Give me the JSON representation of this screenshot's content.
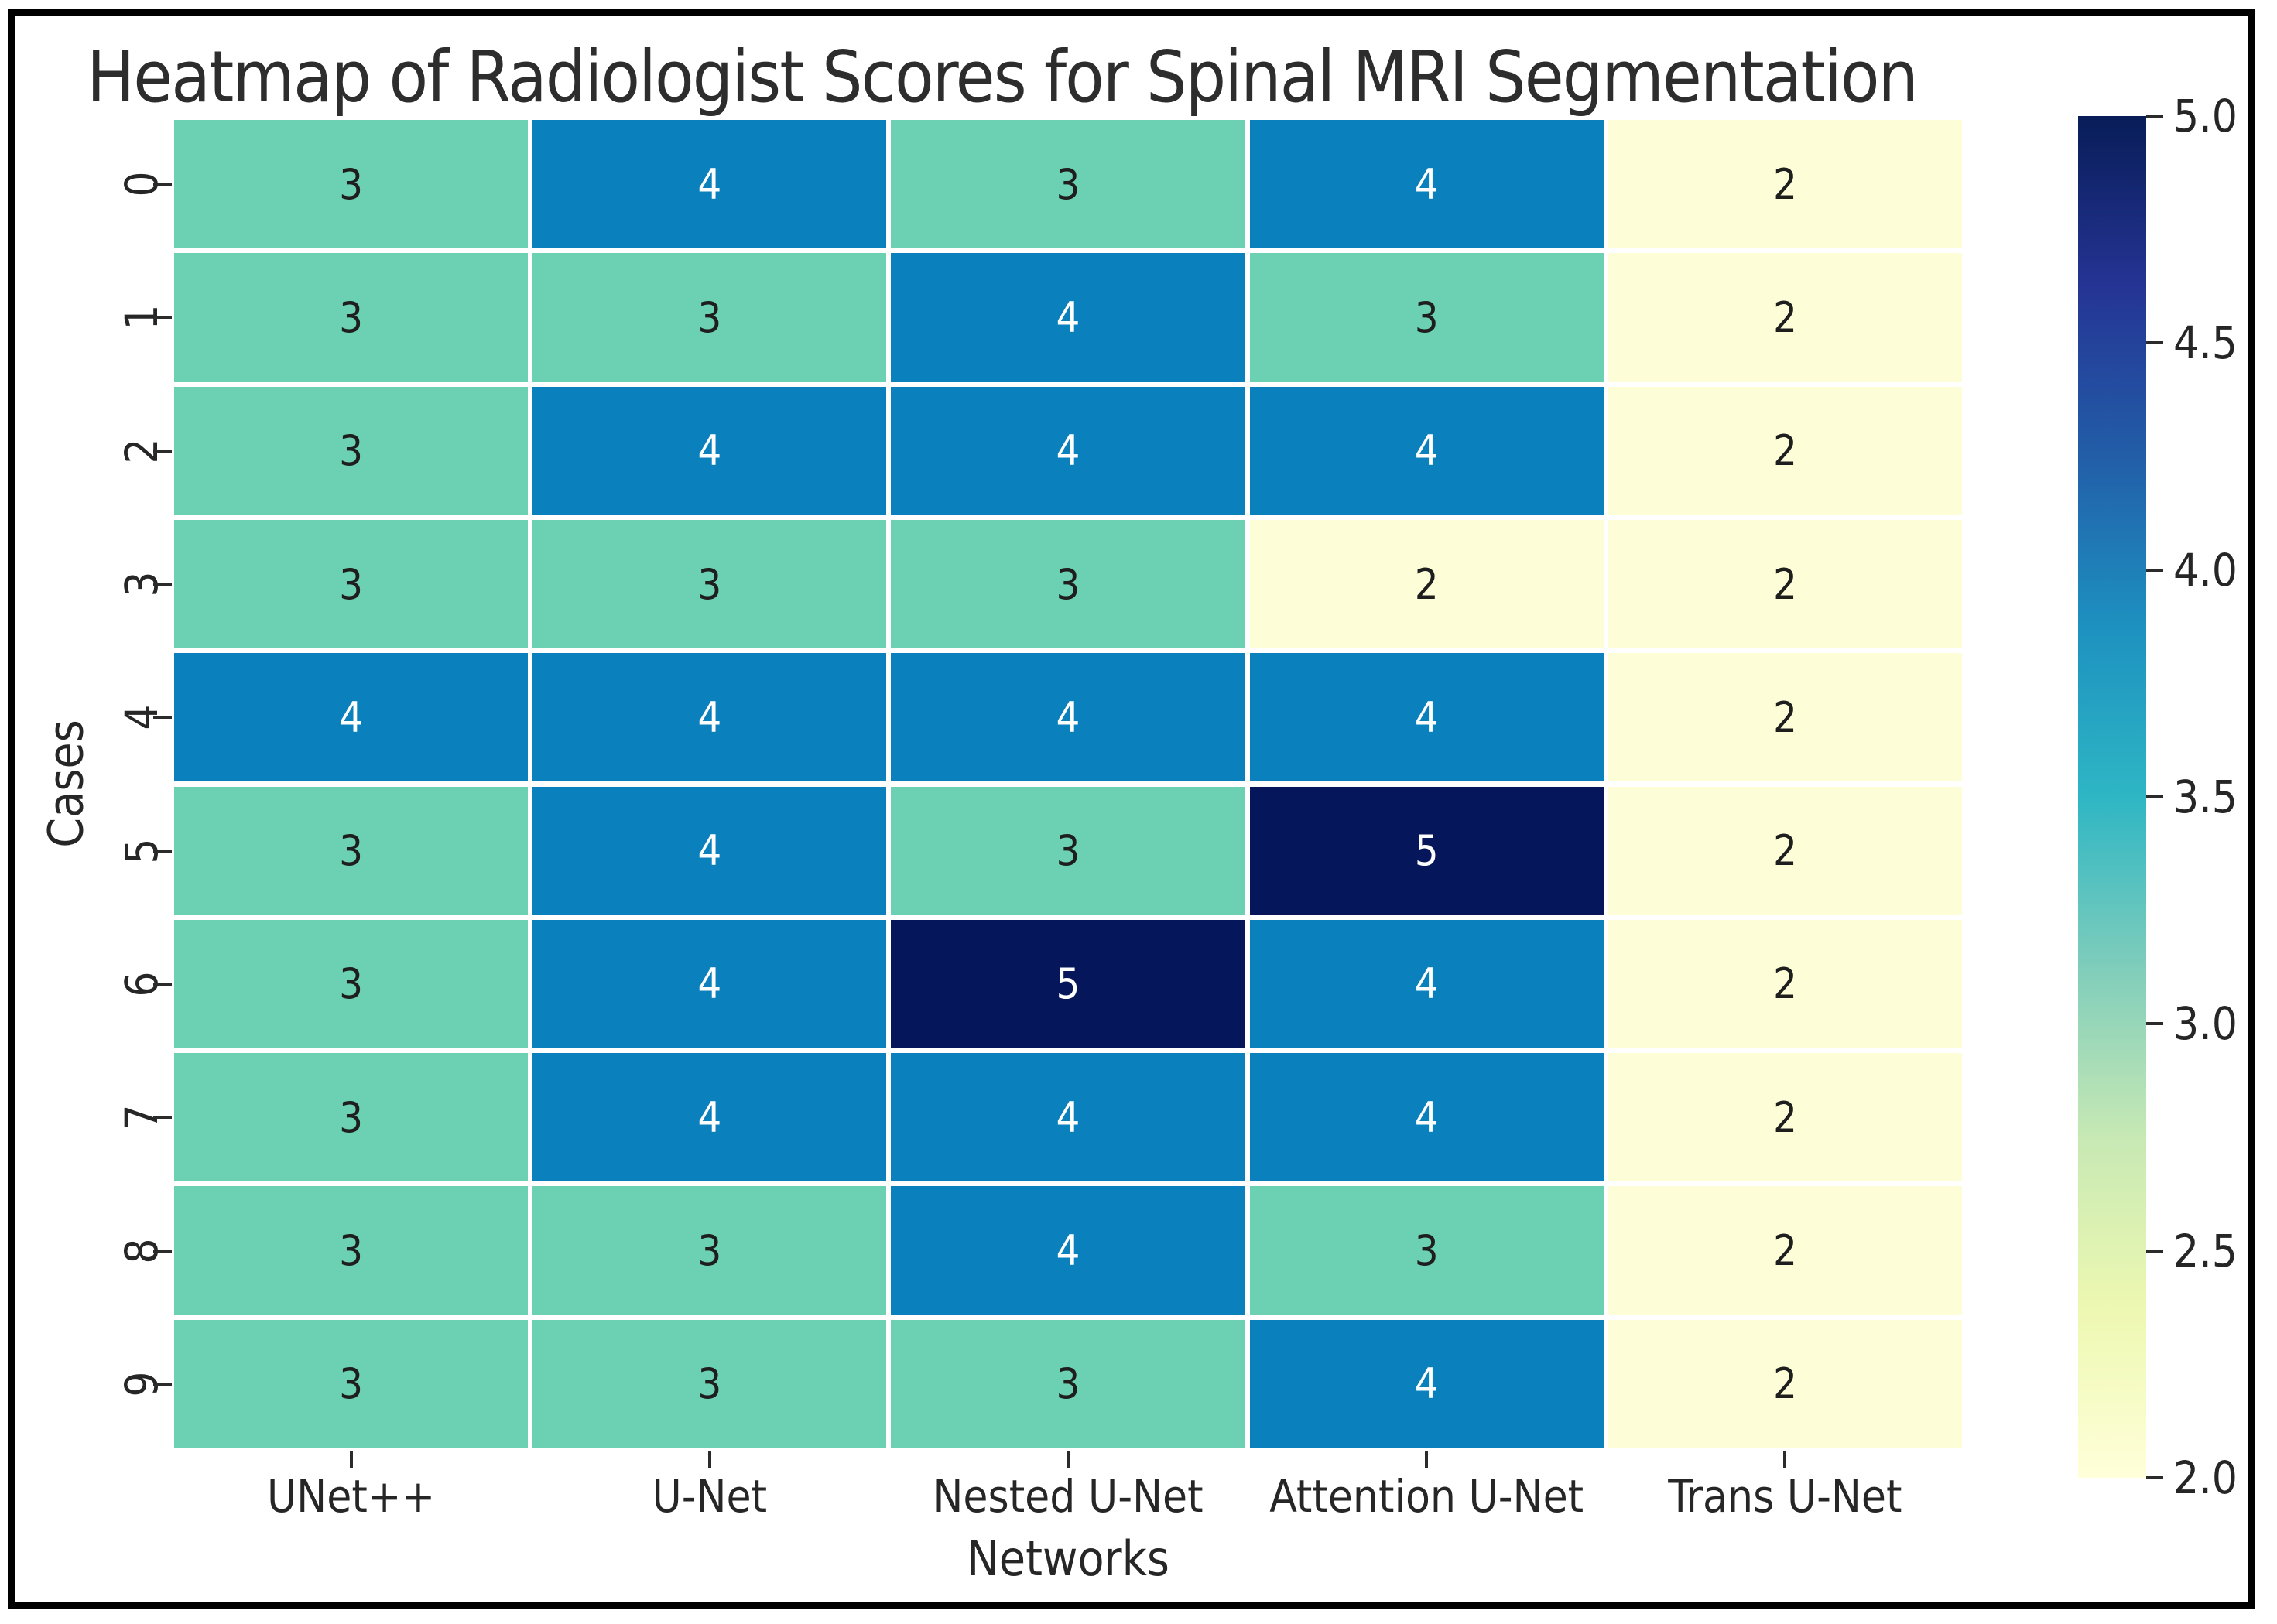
{
  "title": "Heatmap of Radiologist Scores for Spinal MRI Segmentation",
  "chart_data": {
    "type": "heatmap",
    "title": "Heatmap of Radiologist Scores for Spinal MRI Segmentation",
    "xlabel": "Networks",
    "ylabel": "Cases",
    "columns": [
      "UNet++",
      "U-Net",
      "Nested U-Net",
      "Attention U-Net",
      "Trans U-Net"
    ],
    "rows": [
      "0",
      "1",
      "2",
      "3",
      "4",
      "5",
      "6",
      "7",
      "8",
      "9"
    ],
    "values": [
      [
        3,
        4,
        3,
        4,
        2
      ],
      [
        3,
        3,
        4,
        3,
        2
      ],
      [
        3,
        4,
        4,
        4,
        2
      ],
      [
        3,
        3,
        3,
        2,
        2
      ],
      [
        4,
        4,
        4,
        4,
        2
      ],
      [
        3,
        4,
        3,
        5,
        2
      ],
      [
        3,
        4,
        5,
        4,
        2
      ],
      [
        3,
        4,
        4,
        4,
        2
      ],
      [
        3,
        3,
        4,
        3,
        2
      ],
      [
        3,
        3,
        3,
        4,
        2
      ]
    ],
    "vmin": 2,
    "vmax": 5,
    "colormap": "YlGnBu",
    "colorbar_ticks": [
      "5.0",
      "4.5",
      "4.0",
      "3.5",
      "3.0",
      "2.5",
      "2.0"
    ],
    "legend_position": "right-colorbar",
    "grid": false
  },
  "colors": {
    "value_2": "#FDFED7",
    "value_3": "#6CD1B2",
    "value_4": "#0A80BD",
    "value_5": "#05175A",
    "cell_text_dark": "#1E1E1E",
    "cell_text_light": "#FFFFFF",
    "axis_text": "#262626",
    "frame_border": "#000000",
    "colorbar_gradient": [
      {
        "t": 0.0,
        "c": "#FFFFD9"
      },
      {
        "t": 0.125,
        "c": "#EDF8B1"
      },
      {
        "t": 0.25,
        "c": "#C7E9B4"
      },
      {
        "t": 0.375,
        "c": "#7FCDBB"
      },
      {
        "t": 0.5,
        "c": "#2EB6C4"
      },
      {
        "t": 0.625,
        "c": "#1D91C0"
      },
      {
        "t": 0.75,
        "c": "#225EA8"
      },
      {
        "t": 0.875,
        "c": "#253494"
      },
      {
        "t": 1.0,
        "c": "#081D58"
      }
    ]
  }
}
